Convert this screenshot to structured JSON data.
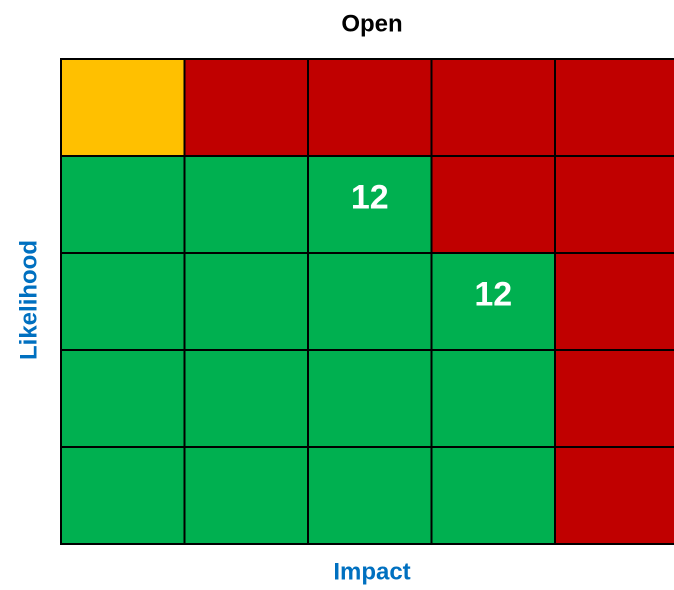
{
  "title": "Open",
  "x_label": "Impact",
  "y_label": "Likelihood",
  "grid": {
    "rows": [
      [
        {
          "color": "#FFC000"
        },
        {
          "color": "#C00000"
        },
        {
          "color": "#C00000"
        },
        {
          "color": "#C00000"
        },
        {
          "color": "#C00000"
        }
      ],
      [
        {
          "color": "#00B050"
        },
        {
          "color": "#00B050"
        },
        {
          "color": "#00B050",
          "label": "12"
        },
        {
          "color": "#C00000"
        },
        {
          "color": "#C00000"
        }
      ],
      [
        {
          "color": "#00B050"
        },
        {
          "color": "#00B050"
        },
        {
          "color": "#00B050"
        },
        {
          "color": "#00B050",
          "label": "12"
        },
        {
          "color": "#C00000"
        }
      ],
      [
        {
          "color": "#00B050"
        },
        {
          "color": "#00B050"
        },
        {
          "color": "#00B050"
        },
        {
          "color": "#00B050"
        },
        {
          "color": "#C00000"
        }
      ],
      [
        {
          "color": "#00B050"
        },
        {
          "color": "#00B050"
        },
        {
          "color": "#00B050"
        },
        {
          "color": "#00B050"
        },
        {
          "color": "#C00000"
        }
      ]
    ]
  }
}
